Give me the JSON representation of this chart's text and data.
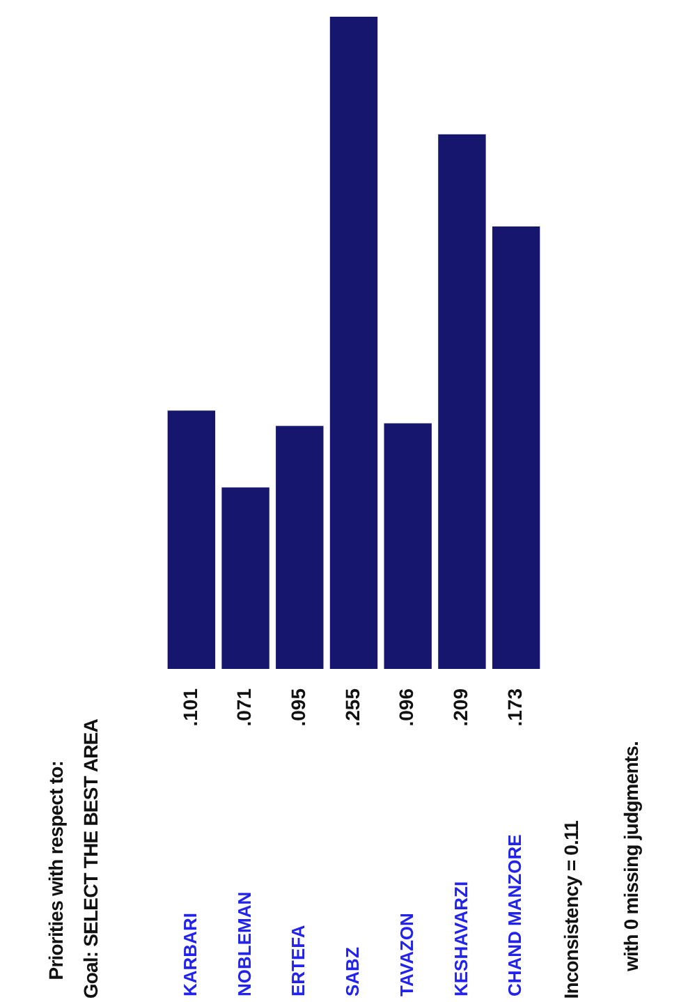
{
  "chart_data": {
    "type": "bar",
    "title": "Priorities with respect to:",
    "subtitle": "Goal: SELECT THE BEST AREA",
    "categories": [
      "KARBARI",
      "NOBLEMAN",
      "ERTEFA",
      "SABZ",
      "TAVAZON",
      "KESHAVARZI",
      "CHAND MANZORE"
    ],
    "values": [
      0.101,
      0.071,
      0.095,
      0.255,
      0.096,
      0.209,
      0.173
    ],
    "value_labels": [
      ".101",
      ".071",
      ".095",
      ".255",
      ".096",
      ".209",
      ".173"
    ],
    "color": "#16166e",
    "annotations": [
      "Inconsistency = 0.11",
      "with 0  missing judgments."
    ]
  }
}
